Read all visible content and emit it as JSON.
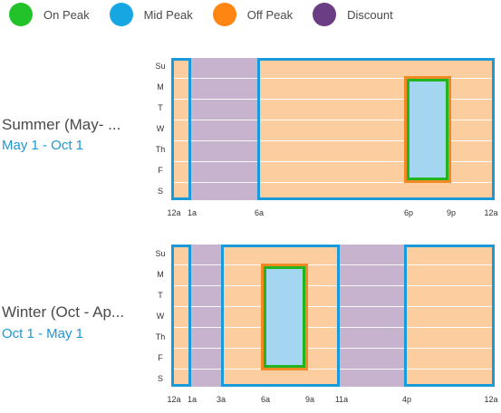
{
  "legend": [
    {
      "label": "On Peak",
      "color": "#22c22a",
      "icon": "on-peak-dot"
    },
    {
      "label": "Mid Peak",
      "color": "#16a7e3",
      "icon": "mid-peak-dot"
    },
    {
      "label": "Off Peak",
      "color": "#ff8512",
      "icon": "off-peak-dot"
    },
    {
      "label": "Discount",
      "color": "#6b3d85",
      "icon": "discount-dot"
    }
  ],
  "days": [
    "Su",
    "M",
    "T",
    "W",
    "Th",
    "F",
    "S"
  ],
  "summer": {
    "title": "Summer (May- ...",
    "dates": "May 1 - Oct 1",
    "ticks": [
      "12a",
      "1a",
      "6a",
      "6p",
      "9p",
      "12a"
    ]
  },
  "winter": {
    "title": "Winter (Oct - Ap...",
    "dates": "Oct 1 - May 1",
    "ticks": [
      "12a",
      "1a",
      "3a",
      "6a",
      "9a",
      "11a",
      "4p",
      "12a"
    ]
  }
}
